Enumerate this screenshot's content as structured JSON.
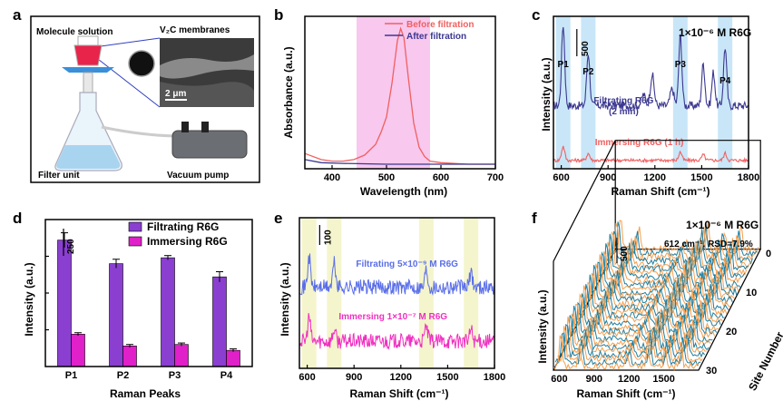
{
  "panel_labels": [
    "a",
    "b",
    "c",
    "d",
    "e",
    "f"
  ],
  "panel_a": {
    "molecule_solution": "Molecule solution",
    "membranes": "V₂C membranes",
    "scale_bar": "2 μm",
    "filter_unit": "Filter unit",
    "vacuum_pump": "Vacuum  pump"
  },
  "colors": {
    "red": "#f06060",
    "navy": "#3c3890",
    "purple": "#8a3fd0",
    "magenta": "#e020c8",
    "blue_line": "#5a6ee8",
    "pink_line": "#f030c0",
    "teal": "#1f7fa0",
    "orange": "#f5a050",
    "band_pink": "#f8c8ee",
    "band_blue": "#c8e6f8",
    "band_yellow": "#f4f5cc"
  },
  "chart_data": [
    {
      "panel": "b",
      "type": "line",
      "xlabel": "Wavelength (nm)",
      "ylabel": "Absorbance (a.u.)",
      "xlim": [
        350,
        700
      ],
      "xticks": [
        400,
        500,
        600,
        700
      ],
      "highlight_range": [
        445,
        580
      ],
      "legend_position": "top-right",
      "series": [
        {
          "name": "Before filtration",
          "color": "#f06060",
          "x": [
            350,
            380,
            400,
            420,
            440,
            460,
            480,
            490,
            500,
            510,
            520,
            526,
            532,
            540,
            550,
            560,
            570,
            580,
            600,
            650,
            700
          ],
          "y": [
            0.1,
            0.06,
            0.05,
            0.05,
            0.06,
            0.09,
            0.16,
            0.24,
            0.34,
            0.56,
            0.84,
            0.92,
            0.86,
            0.6,
            0.3,
            0.14,
            0.08,
            0.05,
            0.04,
            0.03,
            0.03
          ]
        },
        {
          "name": "After filtration",
          "color": "#3c3890",
          "x": [
            350,
            380,
            420,
            500,
            600,
            700
          ],
          "y": [
            0.06,
            0.04,
            0.035,
            0.03,
            0.03,
            0.03
          ]
        }
      ]
    },
    {
      "panel": "c",
      "type": "line",
      "title": "1×10⁻⁶ M R6G",
      "xlabel": "Raman Shift (cm⁻¹)",
      "ylabel": "Intensity (a.u.)",
      "xlim": [
        550,
        1800
      ],
      "xticks": [
        600,
        900,
        1200,
        1500,
        1800
      ],
      "scale_bar_label": "500",
      "peak_labels": [
        "P1",
        "P2",
        "P3",
        "P4"
      ],
      "peak_positions": [
        612,
        773,
        1363,
        1650
      ],
      "series": [
        {
          "name": "Filtrating R6G\n(2 min)",
          "label_lines": [
            "Filtrating R6G",
            "(2 min)"
          ],
          "color": "#3c3890",
          "baseline": 0.45,
          "noise": 0.03,
          "peaks": [
            [
              612,
              0.58,
              10
            ],
            [
              773,
              0.38,
              10
            ],
            [
              1127,
              0.08,
              12
            ],
            [
              1183,
              0.22,
              12
            ],
            [
              1310,
              0.12,
              12
            ],
            [
              1363,
              0.5,
              10
            ],
            [
              1510,
              0.3,
              10
            ],
            [
              1575,
              0.24,
              10
            ],
            [
              1650,
              0.42,
              10
            ]
          ]
        },
        {
          "name": "Immersing R6G (1 h)",
          "color": "#f06060",
          "baseline": 0.06,
          "noise": 0.012,
          "peaks": [
            [
              612,
              0.1,
              10
            ],
            [
              773,
              0.05,
              10
            ],
            [
              1363,
              0.06,
              10
            ],
            [
              1510,
              0.04,
              10
            ],
            [
              1650,
              0.05,
              10
            ]
          ]
        }
      ]
    },
    {
      "panel": "d",
      "type": "bar",
      "xlabel": "Raman Peaks",
      "ylabel": "Intensity (a.u.)",
      "categories": [
        "P1",
        "P2",
        "P3",
        "P4"
      ],
      "ylim": [
        0,
        1.0
      ],
      "scale_bar_label": "250",
      "legend_position": "top-right",
      "series": [
        {
          "name": "Filtrating R6G",
          "color": "#8a3fd0",
          "values": [
            0.86,
            0.7,
            0.74,
            0.61
          ],
          "errors": [
            0.05,
            0.03,
            0.015,
            0.035
          ]
        },
        {
          "name": "Immersing R6G",
          "color": "#e020c8",
          "values": [
            0.22,
            0.14,
            0.15,
            0.11
          ],
          "errors": [
            0.01,
            0.01,
            0.01,
            0.01
          ]
        }
      ]
    },
    {
      "panel": "e",
      "type": "line",
      "xlabel": "Raman Shift (cm⁻¹)",
      "ylabel": "Intensity (a.u.)",
      "xlim": [
        550,
        1800
      ],
      "xticks": [
        600,
        900,
        1200,
        1500,
        1800
      ],
      "scale_bar_label": "100",
      "highlight_centers": [
        612,
        773,
        1363,
        1650
      ],
      "series": [
        {
          "name": "Filtrating 5×10⁻⁹ M  R6G",
          "color": "#5a6ee8",
          "baseline": 0.54,
          "noise": 0.05,
          "peaks": [
            [
              612,
              0.2,
              9
            ],
            [
              773,
              0.16,
              9
            ],
            [
              1363,
              0.12,
              9
            ],
            [
              1650,
              0.1,
              9
            ]
          ]
        },
        {
          "name": "Immersing 1×10⁻⁷ M R6G",
          "color": "#f030c0",
          "baseline": 0.18,
          "noise": 0.05,
          "peaks": [
            [
              612,
              0.16,
              9
            ],
            [
              773,
              0.08,
              9
            ],
            [
              1363,
              0.1,
              9
            ],
            [
              1650,
              0.08,
              9
            ]
          ]
        }
      ]
    },
    {
      "panel": "f",
      "type": "line",
      "title": "1×10⁻⁶ M R6G",
      "annotation": "612 cm⁻¹, RSD=7.9%",
      "xlabel": "Raman Shift (cm⁻¹)",
      "ylabel": "Intensity (a.u.)",
      "zlabel": "Site Number",
      "xlim": [
        550,
        1800
      ],
      "xticks": [
        600,
        900,
        1200,
        1500
      ],
      "zticks": [
        0,
        10,
        20,
        30
      ],
      "scale_bar_label": "500",
      "n_sites": 31,
      "colors_alternating": [
        "#f5a050",
        "#1f7fa0"
      ],
      "peaks": [
        [
          612,
          0.55,
          10
        ],
        [
          773,
          0.35,
          10
        ],
        [
          1183,
          0.18,
          12
        ],
        [
          1363,
          0.45,
          10
        ],
        [
          1510,
          0.3,
          10
        ],
        [
          1650,
          0.38,
          10
        ]
      ]
    }
  ]
}
